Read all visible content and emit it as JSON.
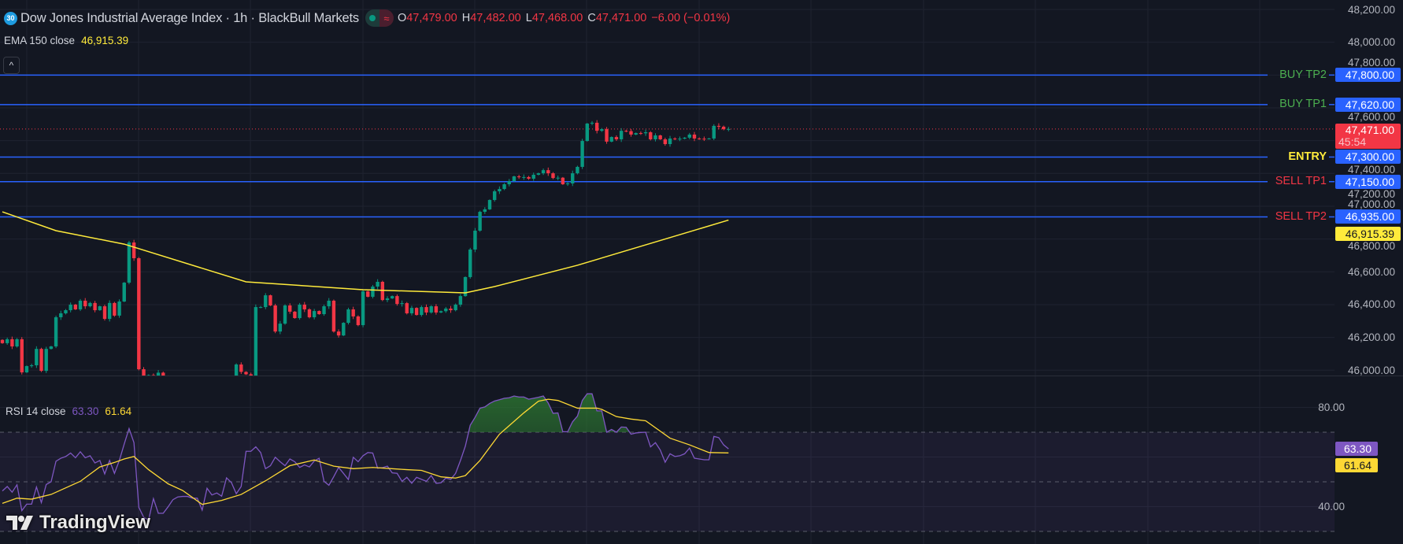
{
  "header": {
    "symbol_badge": "30",
    "title": "Dow Jones Industrial Average Index · 1h · BlackBull Markets",
    "status_icon": "market-open-dot",
    "pill_icon": "approx-icon",
    "ohlc": {
      "o_label": "O",
      "o": "47,479.00",
      "h_label": "H",
      "h": "47,482.00",
      "l_label": "L",
      "l": "47,468.00",
      "c_label": "C",
      "c": "47,471.00",
      "change": "−6.00 (−0.01%)"
    }
  },
  "ema_legend": {
    "label": "EMA 150 close",
    "value": "46,915.39"
  },
  "collapse_icon": "chevron-up",
  "collapse_glyph": "^",
  "rsi_legend": {
    "label": "RSI 14 close",
    "rsi": "63.30",
    "ma": "61.64"
  },
  "logo": {
    "text": "TradingView"
  },
  "colors": {
    "up": "#089981",
    "down": "#F23645",
    "level_line": "#2962FF",
    "ema": "#FFEB3B",
    "rsi": "#7E57C2",
    "rsi_ma": "#FDD835",
    "buy": "#4CAF50",
    "entry": "#FFEB3B",
    "sell": "#F23645"
  },
  "price_axis": {
    "ticks": [
      "48,200.00",
      "48,000.00",
      "47,800.00",
      "47,600.00",
      "47,400.00",
      "47,200.00",
      "47,000.00",
      "46,800.00",
      "46,600.00",
      "46,400.00",
      "46,200.00",
      "46,000.00"
    ]
  },
  "rsi_axis": {
    "ticks": [
      "80.00",
      "40.00"
    ],
    "grid": [
      80,
      60,
      40
    ],
    "bands": [
      70,
      50,
      30
    ]
  },
  "levels": [
    {
      "label": "BUY TP2",
      "price": "47,800.00",
      "kind": "buy"
    },
    {
      "label": "BUY TP1",
      "price": "47,620.00",
      "kind": "buy"
    },
    {
      "label": "ENTRY",
      "price": "47,300.00",
      "kind": "entry"
    },
    {
      "label": "SELL TP1",
      "price": "47,150.00",
      "kind": "sell"
    },
    {
      "label": "SELL TP2",
      "price": "46,935.00",
      "kind": "sell"
    }
  ],
  "last_price": {
    "price": "47,471.00",
    "countdown": "45:54"
  },
  "ema_price_label": "46,915.39",
  "rsi_labels": {
    "rsi": "63.30",
    "ma": "61.64"
  },
  "chart_data": {
    "type": "candlestick",
    "timeframe": "1h",
    "ylim": [
      46000,
      48200
    ],
    "closes": [
      46165,
      46189,
      46145,
      46189,
      45987,
      46025,
      46030,
      46130,
      45996,
      46130,
      46145,
      46323,
      46347,
      46366,
      46400,
      46371,
      46424,
      46390,
      46410,
      46366,
      46390,
      46313,
      46410,
      46333,
      46419,
      46534,
      46779,
      46683,
      46006,
      45960,
      45970,
      45965,
      45985,
      45955,
      45940,
      45930,
      45925,
      45930,
      45920,
      45935,
      45930,
      45925,
      45930,
      45920,
      45925,
      45930,
      45940,
      45945,
      46035,
      45990,
      45975,
      45960,
      46385,
      46385,
      46457,
      46395,
      46236,
      46284,
      46395,
      46357,
      46318,
      46400,
      46371,
      46323,
      46361,
      46342,
      46390,
      46424,
      46236,
      46212,
      46289,
      46371,
      46328,
      46275,
      46481,
      46448,
      46510,
      46539,
      46428,
      46438,
      46452,
      46404,
      46409,
      46347,
      46380,
      46337,
      46385,
      46352,
      46390,
      46352,
      46360,
      46376,
      46366,
      46400,
      46452,
      46568,
      46736,
      46851,
      46966,
      46981,
      47038,
      47091,
      47105,
      47134,
      47153,
      47182,
      47177,
      47178,
      47168,
      47192,
      47201,
      47220,
      47201,
      47172,
      47174,
      47134,
      47139,
      47201,
      47240,
      47398,
      47504,
      47509,
      47460,
      47470,
      47394,
      47422,
      47408,
      47460,
      47458,
      47437,
      47446,
      47445,
      47451,
      47408,
      47432,
      47408,
      47379,
      47413,
      47410,
      47412,
      47418,
      47437,
      47413,
      47412,
      47411,
      47413,
      47490,
      47485,
      47470,
      47471
    ],
    "ema150": [
      [
        0,
        46966
      ],
      [
        11,
        46851
      ],
      [
        25,
        46769
      ],
      [
        50,
        46539
      ],
      [
        74,
        46491
      ],
      [
        95,
        46472
      ],
      [
        101,
        46510
      ],
      [
        118,
        46640
      ],
      [
        149,
        46915.39
      ]
    ],
    "rsi14": [
      46.3,
      48.1,
      45.8,
      48.8,
      38.4,
      41,
      41,
      47.9,
      41.6,
      48.9,
      50,
      58.3,
      59.5,
      60.2,
      61.6,
      59.7,
      62.1,
      59.7,
      60.5,
      57.6,
      58.6,
      53.2,
      58.6,
      53.4,
      58.6,
      65.2,
      71.5,
      65.8,
      39.7,
      35.7,
      34.6,
      43.2,
      37.3,
      37.3,
      39.9,
      42.8,
      43.9,
      44.1,
      44.1,
      43.4,
      43.4,
      38.6,
      47.4,
      44.7,
      45.5,
      44.2,
      51.6,
      49.7,
      45.2,
      48.1,
      62.3,
      62.3,
      64.1,
      61.8,
      55.3,
      56.5,
      59.9,
      58.1,
      56.5,
      59.2,
      58.1,
      55.8,
      56.8,
      56,
      58.4,
      59.5,
      50.2,
      48.6,
      52.1,
      55.8,
      53.4,
      50.9,
      59.9,
      58.1,
      60.5,
      61.8,
      61.6,
      55.5,
      55.7,
      56.3,
      53.6,
      53.4,
      50.2,
      51.8,
      49.4,
      51.8,
      51,
      50.2,
      52.5,
      49.4,
      49.6,
      51.5,
      51,
      53.4,
      58.6,
      64.4,
      72.8,
      76,
      79.7,
      80.2,
      81.6,
      82.6,
      83.1,
      83.7,
      83.9,
      84.6,
      84.2,
      84.2,
      83.3,
      83.7,
      84.1,
      84.6,
      81.8,
      77.6,
      77.8,
      70.2,
      70.2,
      74.2,
      76.5,
      82.8,
      85.5,
      85.5,
      78.6,
      78.6,
      70,
      71.1,
      70,
      72.1,
      72,
      69.2,
      69.7,
      69.9,
      70,
      64.1,
      65.8,
      62.8,
      57.9,
      61.3,
      60.2,
      60.5,
      61.3,
      63.6,
      59.5,
      59.2,
      58.9,
      58.9,
      68.3,
      67.8,
      64.9,
      63.3
    ],
    "rsi_ma": [
      [
        0,
        41.3
      ],
      [
        3,
        43.4
      ],
      [
        6,
        43
      ],
      [
        10,
        44.9
      ],
      [
        16,
        50.2
      ],
      [
        20,
        56
      ],
      [
        23,
        57.8
      ],
      [
        25,
        59.2
      ],
      [
        27,
        60.2
      ],
      [
        30,
        54.9
      ],
      [
        34,
        49.2
      ],
      [
        37,
        46.5
      ],
      [
        41,
        40.9
      ],
      [
        45,
        42.5
      ],
      [
        49,
        44.9
      ],
      [
        54,
        50.4
      ],
      [
        59,
        56.5
      ],
      [
        64,
        58.8
      ],
      [
        68,
        56.3
      ],
      [
        72,
        55.3
      ],
      [
        76,
        55.8
      ],
      [
        83,
        54.9
      ],
      [
        86,
        54.6
      ],
      [
        90,
        52
      ],
      [
        93,
        51.5
      ],
      [
        95,
        52.5
      ],
      [
        98,
        58.6
      ],
      [
        102,
        69.2
      ],
      [
        107,
        77.8
      ],
      [
        110,
        82.5
      ],
      [
        112,
        83.3
      ],
      [
        114,
        82.8
      ],
      [
        118,
        79.7
      ],
      [
        122,
        79.7
      ],
      [
        123,
        79.2
      ],
      [
        126,
        76.3
      ],
      [
        129,
        75.3
      ],
      [
        132,
        74.6
      ],
      [
        137,
        67.6
      ],
      [
        141,
        64.9
      ],
      [
        145,
        61.8
      ],
      [
        149,
        61.64
      ]
    ],
    "rsi_ylim": [
      20,
      95
    ]
  }
}
